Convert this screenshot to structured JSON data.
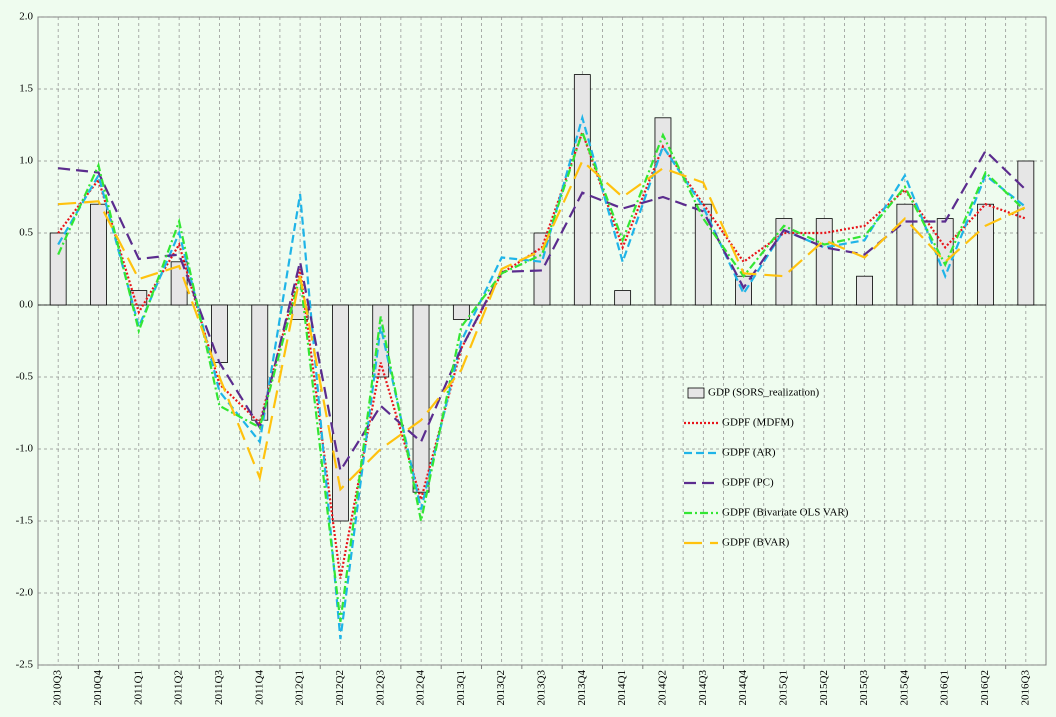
{
  "chart_data": {
    "type": "combo",
    "categories": [
      "2010Q3",
      "2010Q4",
      "2011Q1",
      "2011Q2",
      "2011Q3",
      "2011Q4",
      "2012Q1",
      "2012Q2",
      "2012Q3",
      "2012Q4",
      "2013Q1",
      "2013Q2",
      "2013Q3",
      "2013Q4",
      "2014Q1",
      "2014Q2",
      "2014Q3",
      "2014Q4",
      "2015Q1",
      "2015Q2",
      "2015Q3",
      "2015Q4",
      "2016Q1",
      "2016Q2",
      "2016Q3"
    ],
    "ylim": [
      -2.5,
      2.0
    ],
    "yticks": [
      {
        "value": 2.0,
        "label": "2.0"
      },
      1.5,
      {
        "value": 1.0,
        "label": "1.0"
      },
      0.5,
      {
        "value": 0.0,
        "label": "0.0"
      },
      -0.5,
      {
        "value": -1.0,
        "label": "-1.0"
      },
      -1.5,
      {
        "value": -2.0,
        "label": "-2.0"
      },
      -2.5
    ],
    "grid": true,
    "series": [
      {
        "name": "GDP (SORS_realization)",
        "type": "bar",
        "color": "#e6e6e6",
        "values": [
          0.5,
          0.7,
          0.1,
          0.3,
          -0.4,
          -0.8,
          -0.1,
          -1.5,
          -0.5,
          -1.3,
          -0.1,
          0,
          0.5,
          1.6,
          0.1,
          1.3,
          0.7,
          0.2,
          0.6,
          0.6,
          0.2,
          0.7,
          0.6,
          0.7,
          1.0
        ]
      },
      {
        "name": "GDPF (MDFM)",
        "type": "line",
        "color": "#e8141a",
        "dash": "2,2",
        "values": [
          0.5,
          0.87,
          -0.05,
          0.42,
          -0.55,
          -0.82,
          0.25,
          -1.9,
          -0.4,
          -1.35,
          -0.3,
          0.22,
          0.4,
          1.2,
          0.4,
          1.1,
          0.7,
          0.3,
          0.5,
          0.5,
          0.55,
          0.8,
          0.4,
          0.7,
          0.6
        ]
      },
      {
        "name": "GDPF (AR)",
        "type": "line",
        "color": "#1fb4e8",
        "dash": "8,4",
        "values": [
          0.42,
          0.9,
          -0.15,
          0.5,
          -0.6,
          -0.95,
          0.77,
          -2.32,
          -0.15,
          -1.42,
          -0.25,
          0.33,
          0.3,
          1.3,
          0.3,
          1.1,
          0.68,
          0.08,
          0.52,
          0.4,
          0.45,
          0.9,
          0.2,
          0.9,
          0.68
        ]
      },
      {
        "name": "GDPF (PC)",
        "type": "line",
        "color": "#5b2c8e",
        "dash": "12,6",
        "values": [
          0.95,
          0.92,
          0.32,
          0.35,
          -0.4,
          -0.85,
          0.3,
          -1.15,
          -0.7,
          -0.95,
          -0.3,
          0.23,
          0.24,
          0.78,
          0.67,
          0.75,
          0.65,
          0.12,
          0.52,
          0.4,
          0.35,
          0.58,
          0.58,
          1.07,
          0.8
        ]
      },
      {
        "name": "GDPF (Bivariate OLS VAR)",
        "type": "line",
        "color": "#33e633",
        "dash": "8,3,2,3",
        "values": [
          0.35,
          0.97,
          -0.18,
          0.58,
          -0.7,
          -0.85,
          0.2,
          -2.2,
          -0.08,
          -1.5,
          -0.15,
          0.22,
          0.35,
          1.2,
          0.45,
          1.18,
          0.6,
          0.2,
          0.55,
          0.42,
          0.48,
          0.82,
          0.28,
          0.92,
          0.65
        ]
      },
      {
        "name": "GDPF (BVAR)",
        "type": "line",
        "color": "#ffc20e",
        "dash": "18,8",
        "values": [
          0.7,
          0.72,
          0.18,
          0.27,
          -0.5,
          -1.2,
          0.2,
          -1.28,
          -1.0,
          -0.8,
          -0.45,
          0.25,
          0.38,
          1.0,
          0.75,
          0.95,
          0.85,
          0.22,
          0.2,
          0.45,
          0.33,
          0.6,
          0.3,
          0.55,
          0.68
        ]
      }
    ]
  }
}
